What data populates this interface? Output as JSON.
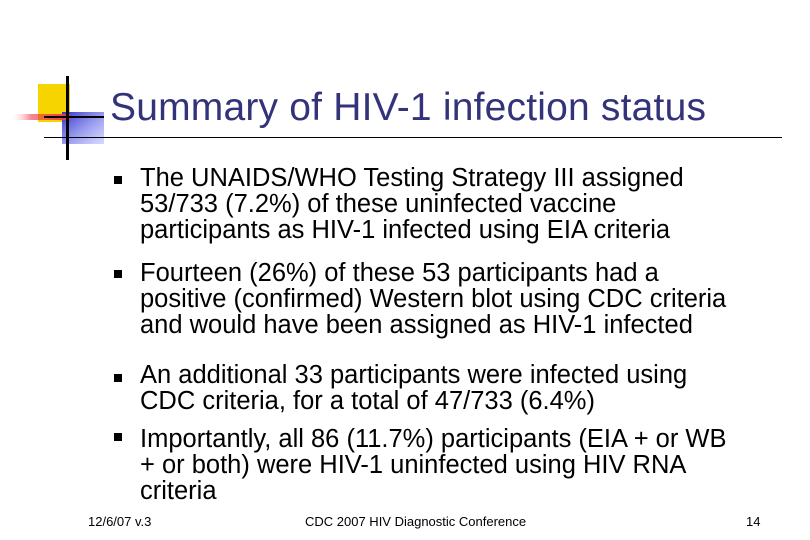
{
  "slide": {
    "title": "Summary of HIV-1 infection status",
    "bullets": [
      "The UNAIDS/WHO Testing Strategy III assigned\n53/733 (7.2%) of these uninfected vaccine\nparticipants as HIV-1 infected using EIA criteria",
      "Fourteen (26%) of these 53 participants had a\npositive (confirmed) Western blot using CDC criteria\nand would have been assigned as HIV-1 infected",
      "An additional 33 participants were infected using\nCDC criteria, for a total of 47/733 (6.4%)",
      "Importantly, all 86 (11.7%) participants (EIA + or WB\n+ or both) were HIV-1 uninfected using HIV RNA\ncriteria"
    ]
  },
  "footer": {
    "date_version": "12/6/07 v.3",
    "conference": "CDC 2007 HIV Diagnostic Conference",
    "page_number": "14"
  },
  "colors": {
    "title": "#33337a",
    "logo_yellow": "#f5d400",
    "logo_red": "#ee3a4a",
    "logo_blue": "#2f32c8"
  }
}
